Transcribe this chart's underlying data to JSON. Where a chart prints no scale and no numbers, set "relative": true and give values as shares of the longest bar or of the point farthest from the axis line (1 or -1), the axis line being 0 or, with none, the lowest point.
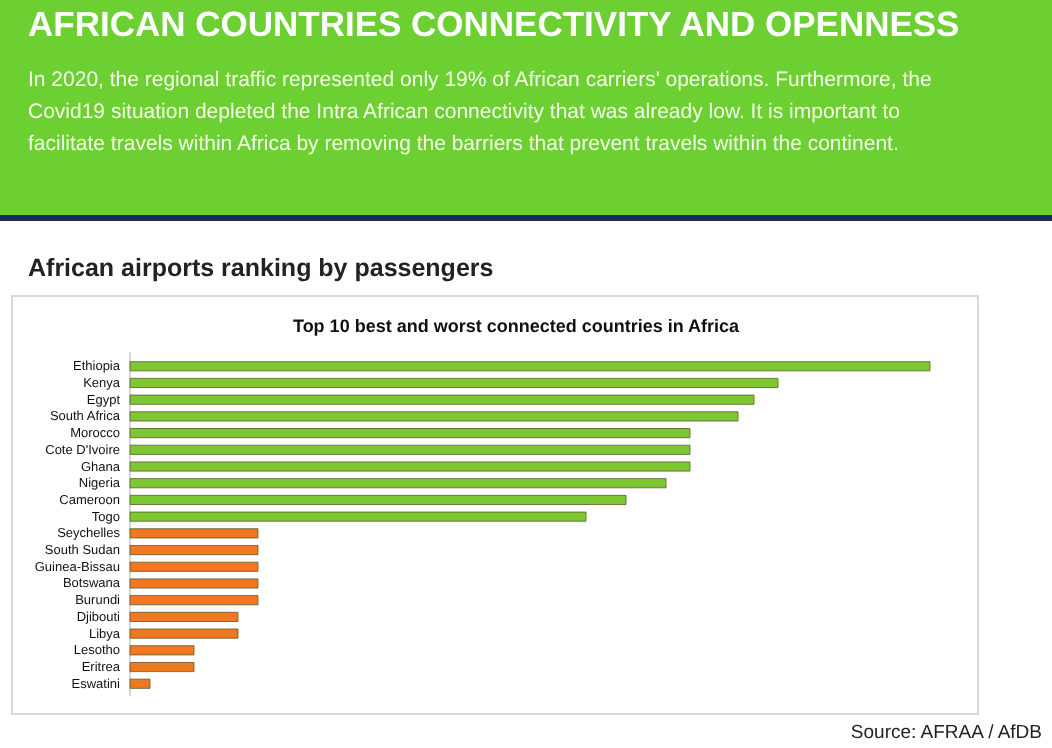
{
  "chart_data": {
    "type": "bar",
    "orientation": "horizontal",
    "title": "Top 10 best and worst connected countries in Africa",
    "annotations": [
      "AFRICAN COUNTRIES CONNECTIVITY AND OPENNESS",
      "In 2020, the regional traffic represented only 19% of African carriers' operations. Furthermore, the Covid19 situation depleted the Intra African connectivity that was already low. It is important to facilitate travels within Africa by removing the barriers that prevent travels within the continent.",
      "African airports ranking by passengers",
      "Source: AFRAA / AfDB"
    ],
    "categories": [
      "Ethiopia",
      "Kenya",
      "Egypt",
      "South Africa",
      "Morocco",
      "Cote D'Ivoire",
      "Ghana",
      "Nigeria",
      "Cameroon",
      "Togo",
      "Seychelles",
      "South Sudan",
      "Guinea-Bissau",
      "Botswana",
      "Burundi",
      "Djibouti",
      "Libya",
      "Lesotho",
      "Eritrea",
      "Eswatini"
    ],
    "values": [
      1,
      0.81,
      0.78,
      0.76,
      0.7,
      0.7,
      0.7,
      0.67,
      0.62,
      0.57,
      0.16,
      0.16,
      0.16,
      0.16,
      0.16,
      0.135,
      0.135,
      0.08,
      0.08,
      0.025
    ],
    "colors": [
      "#7dc832",
      "#7dc832",
      "#7dc832",
      "#7dc832",
      "#7dc832",
      "#7dc832",
      "#7dc832",
      "#7dc832",
      "#7dc832",
      "#7dc832",
      "#f07820",
      "#f07820",
      "#f07820",
      "#f07820",
      "#f07820",
      "#f07820",
      "#f07820",
      "#f07820",
      "#f07820",
      "#f07820"
    ],
    "relative": true
  }
}
